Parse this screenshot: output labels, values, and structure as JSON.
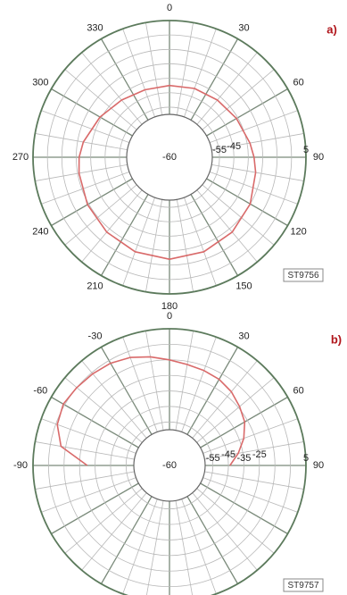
{
  "chart_data": [
    {
      "type": "polar",
      "panel_label": "a)",
      "code": "ST9756",
      "angle_labels": [
        {
          "angle": 0,
          "text": "0"
        },
        {
          "angle": 30,
          "text": "30"
        },
        {
          "angle": 60,
          "text": "60"
        },
        {
          "angle": 90,
          "text": "90"
        },
        {
          "angle": 120,
          "text": "120"
        },
        {
          "angle": 150,
          "text": "150"
        },
        {
          "angle": 180,
          "text": "180"
        },
        {
          "angle": 210,
          "text": "210"
        },
        {
          "angle": 240,
          "text": "240"
        },
        {
          "angle": 270,
          "text": "270"
        },
        {
          "angle": 300,
          "text": "300"
        },
        {
          "angle": 330,
          "text": "330"
        }
      ],
      "radial_labels": [
        "-60",
        "-55",
        "-45",
        "5"
      ],
      "rlim": [
        -60,
        5
      ],
      "rings": [
        -55,
        -45,
        -35,
        -25,
        -15,
        -5,
        5
      ],
      "line_color": "#d96a6a",
      "series": {
        "angles": [
          0,
          20,
          40,
          60,
          80,
          90,
          100,
          120,
          140,
          160,
          180,
          200,
          220,
          240,
          260,
          270,
          280,
          300,
          320,
          340,
          360
        ],
        "values": [
          -40,
          -39,
          -38,
          -36,
          -33,
          -31,
          -29,
          -25,
          -22,
          -20,
          -19,
          -20,
          -22,
          -24,
          -26,
          -27,
          -29,
          -34,
          -38,
          -40,
          -40
        ]
      }
    },
    {
      "type": "polar",
      "panel_label": "b)",
      "code": "ST9757",
      "angle_labels": [
        {
          "angle": 0,
          "text": "0"
        },
        {
          "angle": 30,
          "text": "30"
        },
        {
          "angle": 60,
          "text": "60"
        },
        {
          "angle": 90,
          "text": "90"
        },
        {
          "angle": -30,
          "text": "-30"
        },
        {
          "angle": -60,
          "text": "-60"
        },
        {
          "angle": -90,
          "text": "-90"
        }
      ],
      "radial_labels": [
        "-60",
        "-55",
        "-45",
        "-35",
        "-25",
        "5"
      ],
      "rlim": [
        -60,
        5
      ],
      "rings": [
        -55,
        -45,
        -35,
        -25,
        -15,
        -5,
        5
      ],
      "line_color": "#d96a6a",
      "series": {
        "angles": [
          -90,
          -80,
          -70,
          -60,
          -50,
          -40,
          -30,
          -20,
          -10,
          0,
          10,
          20,
          30,
          40,
          50,
          60,
          70,
          80,
          90
        ],
        "values": [
          -30,
          -12,
          -6,
          -4,
          -5,
          -6,
          -7,
          -9,
          -12,
          -15,
          -17,
          -18,
          -19,
          -21,
          -24,
          -27,
          -32,
          -38,
          -44
        ]
      }
    }
  ]
}
